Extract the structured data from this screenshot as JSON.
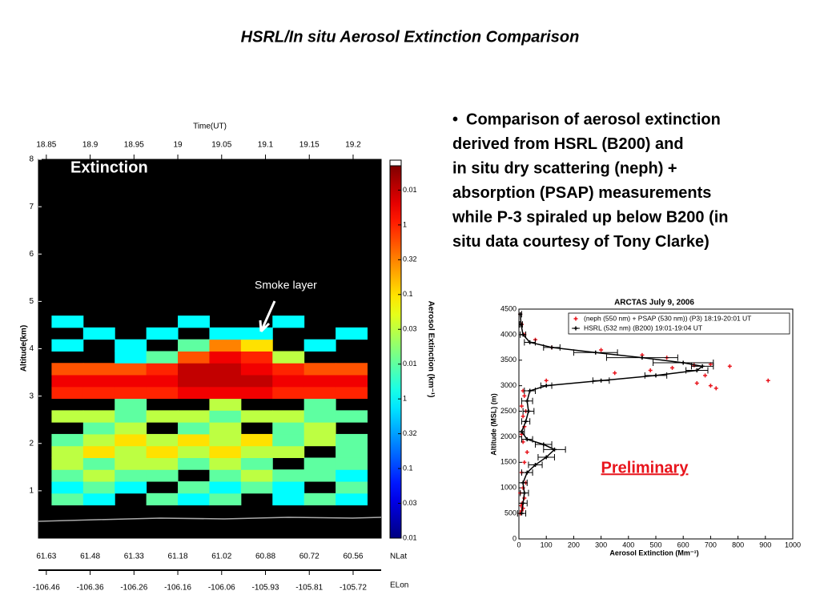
{
  "title": "HSRL/In situ Aerosol Extinction Comparison",
  "bullet_lines": [
    "Comparison of aerosol extinction",
    "derived from HSRL (B200) and",
    "in situ dry scattering (neph) +",
    "absorption (PSAP) measurements",
    "while P-3 spiraled up below B200 (in",
    "situ data courtesy of Tony Clarke)"
  ],
  "chart_data": [
    {
      "type": "heatmap",
      "annotations": [
        "Extinction",
        "Smoke layer"
      ],
      "x_label": "Time(UT)",
      "y_label": "Altitude(km)",
      "xlim": [
        18.841,
        19.232
      ],
      "xticks": [
        18.85,
        18.9,
        18.95,
        19,
        19.05,
        19.1,
        19.15,
        19.2
      ],
      "ylim": [
        0,
        8
      ],
      "yticks": [
        1,
        2,
        3,
        4,
        5,
        6,
        7,
        8
      ],
      "x_bins": [
        18.856,
        18.892,
        18.928,
        18.964,
        19.0,
        19.036,
        19.072,
        19.108,
        19.144,
        19.18,
        19.216
      ],
      "y_bins": [
        0.7,
        0.95,
        1.2,
        1.45,
        1.7,
        1.95,
        2.2,
        2.45,
        2.7,
        2.95,
        3.2,
        3.45,
        3.7,
        3.95,
        4.2,
        4.45,
        4.7
      ],
      "z": [
        [
          5,
          4,
          null,
          5,
          4,
          5,
          null,
          4,
          5,
          4
        ],
        [
          4,
          5,
          4,
          null,
          5,
          4,
          5,
          4,
          null,
          5
        ],
        [
          5,
          6,
          5,
          5,
          null,
          5,
          6,
          5,
          5,
          4
        ],
        [
          6,
          5,
          6,
          6,
          5,
          6,
          5,
          null,
          5,
          5
        ],
        [
          6,
          7,
          6,
          7,
          6,
          7,
          6,
          6,
          null,
          5
        ],
        [
          5,
          6,
          7,
          6,
          7,
          6,
          7,
          5,
          6,
          5
        ],
        [
          null,
          5,
          6,
          null,
          5,
          6,
          null,
          5,
          6,
          null
        ],
        [
          6,
          6,
          5,
          6,
          6,
          5,
          6,
          6,
          5,
          5
        ],
        [
          null,
          null,
          5,
          null,
          null,
          6,
          null,
          null,
          5,
          null
        ],
        [
          9,
          9,
          9,
          9,
          9.5,
          9.5,
          9.5,
          9,
          9,
          9
        ],
        [
          9.5,
          9.5,
          9.5,
          9.5,
          10,
          10,
          10,
          9.5,
          9.5,
          9.5
        ],
        [
          8.5,
          8.5,
          8.5,
          9,
          10,
          10,
          9.5,
          9,
          8.5,
          8.5
        ],
        [
          null,
          null,
          4,
          5,
          8.5,
          9.5,
          9,
          6,
          null,
          null
        ],
        [
          4,
          null,
          4,
          null,
          5,
          8,
          7,
          null,
          4,
          null
        ],
        [
          null,
          4,
          null,
          4,
          null,
          4,
          4,
          null,
          null,
          4
        ],
        [
          4,
          null,
          null,
          null,
          4,
          null,
          null,
          4,
          null,
          null
        ]
      ],
      "zlim": [
        0,
        10.7
      ],
      "zticks": [
        {
          "value": 0,
          "label": "0.01"
        },
        {
          "value": 1,
          "label": "0.03"
        },
        {
          "value": 2,
          "label": "0.1"
        },
        {
          "value": 3,
          "label": "0.32"
        },
        {
          "value": 4,
          "label": "1"
        },
        {
          "value": 5,
          "label": "0.01"
        },
        {
          "value": 6,
          "label": "0.03"
        },
        {
          "value": 7,
          "label": "0.1"
        },
        {
          "value": 8,
          "label": "0.32"
        },
        {
          "value": 9,
          "label": "1"
        },
        {
          "value": 10,
          "label": "0.01"
        }
      ],
      "z_label": "Aerosol Extinction (km⁻¹)",
      "nlat_label": "NLat",
      "nlat": [
        61.63,
        61.48,
        61.33,
        61.18,
        61.02,
        60.88,
        60.72,
        60.56
      ],
      "elon_label": "ELon",
      "elon": [
        -106.46,
        -106.36,
        -106.26,
        -106.16,
        -106.06,
        -105.93,
        -105.81,
        -105.72
      ]
    },
    {
      "type": "scatter",
      "title": "ARCTAS  July 9, 2006",
      "x_label": "Aerosol Extinction (Mm⁻¹)",
      "y_label": "Altitude (MSL) (m)",
      "xlim": [
        0,
        1000
      ],
      "xticks": [
        0,
        100,
        200,
        300,
        400,
        500,
        600,
        700,
        800,
        900,
        1000
      ],
      "ylim": [
        0,
        4500
      ],
      "yticks": [
        0,
        500,
        1000,
        1500,
        2000,
        2500,
        3000,
        3500,
        4000,
        4500
      ],
      "annotation": "Preliminary",
      "series": [
        {
          "name": "(neph (550 nm) + PSAP (530 nm)) (P3) 18:19-20:01 UT",
          "color": "#e8141c",
          "x": [
            5,
            10,
            15,
            8,
            12,
            20,
            5,
            15,
            25,
            10,
            20,
            30,
            15,
            10,
            20,
            15,
            25,
            10,
            20,
            15,
            100,
            350,
            480,
            560,
            640,
            700,
            770,
            910,
            680,
            700,
            720,
            650,
            540,
            450,
            300,
            120,
            60,
            20,
            10,
            5
          ],
          "y": [
            500,
            550,
            600,
            650,
            700,
            800,
            900,
            1000,
            1100,
            1300,
            1500,
            1700,
            1900,
            2050,
            2200,
            2400,
            2500,
            2600,
            2800,
            2900,
            3100,
            3250,
            3300,
            3350,
            3400,
            3420,
            3380,
            3100,
            3200,
            3000,
            2950,
            3050,
            3550,
            3600,
            3700,
            3750,
            3900,
            4000,
            4200,
            4400
          ]
        },
        {
          "name": "HSRL (532 nm) (B200) 19:01-19:04 UT",
          "color": "#000000",
          "x": [
            10,
            15,
            20,
            15,
            30,
            60,
            100,
            130,
            90,
            30,
            10,
            25,
            35,
            30,
            40,
            100,
            300,
            500,
            650,
            670,
            600,
            450,
            280,
            120,
            40,
            15,
            8,
            5
          ],
          "y": [
            500,
            700,
            900,
            1100,
            1300,
            1450,
            1600,
            1750,
            1850,
            1950,
            2100,
            2300,
            2500,
            2700,
            2900,
            3000,
            3100,
            3200,
            3300,
            3380,
            3450,
            3550,
            3650,
            3750,
            3850,
            4000,
            4200,
            4400
          ],
          "xerr": [
            15,
            15,
            15,
            15,
            20,
            25,
            30,
            40,
            30,
            20,
            10,
            15,
            20,
            20,
            20,
            20,
            30,
            40,
            40,
            40,
            110,
            130,
            80,
            30,
            20,
            10,
            5,
            5
          ]
        }
      ]
    }
  ]
}
